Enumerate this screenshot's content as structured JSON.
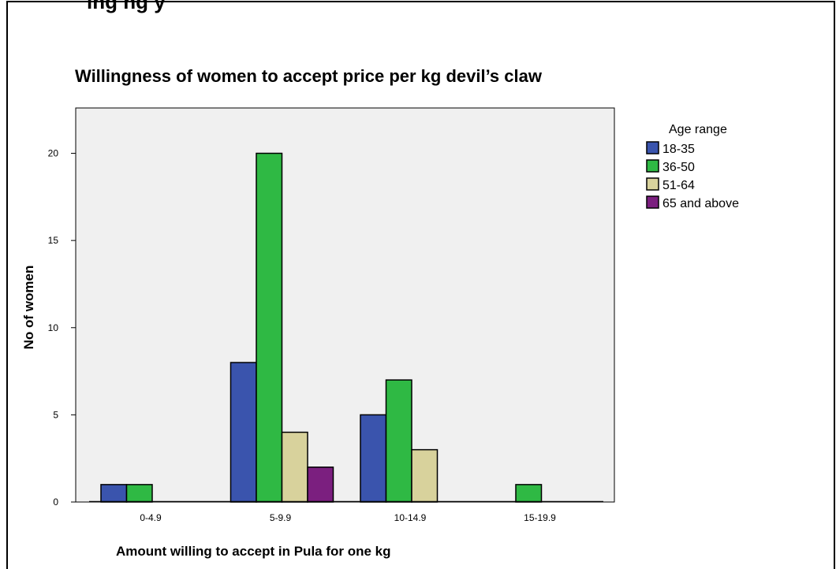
{
  "header_fragment": "ing ng                                    y",
  "chart_data": {
    "type": "bar",
    "title": "Willingness of women to accept price per kg devil’s claw",
    "xlabel": "Amount willing to accept in Pula for one kg",
    "ylabel": "No of women",
    "categories": [
      "0-4.9",
      "5-9.9",
      "10-14.9",
      "15-19.9"
    ],
    "ylim": [
      0,
      22.6
    ],
    "yticks": [
      0,
      5,
      10,
      15,
      20
    ],
    "grid": false,
    "legend_title": "Age range",
    "legend_position": "right",
    "series": [
      {
        "name": "18-35",
        "color": "#3a54ad",
        "values": [
          1,
          8,
          5,
          0
        ]
      },
      {
        "name": "36-50",
        "color": "#2fb944",
        "values": [
          1,
          20,
          7,
          1
        ]
      },
      {
        "name": "51-64",
        "color": "#d8d29c",
        "values": [
          0,
          4,
          3,
          0
        ]
      },
      {
        "name": "65 and above",
        "color": "#7b1f7f",
        "values": [
          0,
          2,
          0,
          0
        ]
      }
    ],
    "plot_background": "#f0f0f0"
  }
}
